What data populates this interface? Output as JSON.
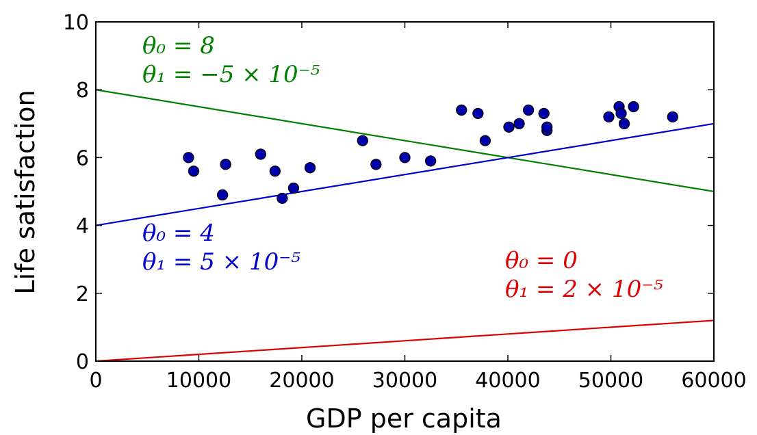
{
  "chart_data": {
    "type": "scatter",
    "xlabel": "GDP per capita",
    "ylabel": "Life satisfaction",
    "xlim": [
      0,
      60000
    ],
    "ylim": [
      0,
      10
    ],
    "xticks": [
      0,
      10000,
      20000,
      30000,
      40000,
      50000,
      60000
    ],
    "yticks": [
      0,
      2,
      4,
      6,
      8,
      10
    ],
    "xtick_labels": [
      "0",
      "10000",
      "20000",
      "30000",
      "40000",
      "50000",
      "60000"
    ],
    "ytick_labels": [
      "0",
      "2",
      "4",
      "6",
      "8",
      "10"
    ],
    "grid": false,
    "points": {
      "color": "#0000aa",
      "x": [
        9000,
        9500,
        12300,
        12600,
        16000,
        17400,
        18100,
        19200,
        20800,
        25900,
        27200,
        30000,
        32500,
        35500,
        37100,
        37800,
        40100,
        41100,
        42000,
        43500,
        43800,
        43800,
        49800,
        50800,
        51000,
        51300,
        52200,
        56000
      ],
      "y": [
        6.0,
        5.6,
        4.9,
        5.8,
        6.1,
        5.6,
        4.8,
        5.1,
        5.7,
        6.5,
        5.8,
        6.0,
        5.9,
        7.4,
        7.3,
        6.5,
        6.9,
        7.0,
        7.4,
        7.3,
        6.8,
        6.9,
        7.2,
        7.5,
        7.3,
        7.0,
        7.5,
        7.2
      ]
    },
    "lines": [
      {
        "theta0": 8,
        "theta1": -5e-05,
        "color": "#008000",
        "label_line1": "θ₀ = 8",
        "label_line2": "θ₁ = −5 × 10⁻⁵"
      },
      {
        "theta0": 4,
        "theta1": 5e-05,
        "color": "#0000cc",
        "label_line1": "θ₀ = 4",
        "label_line2": "θ₁ = 5 × 10⁻⁵"
      },
      {
        "theta0": 0,
        "theta1": 2e-05,
        "color": "#dd0000",
        "label_line1": "θ₀ = 0",
        "label_line2": "θ₁ = 2 × 10⁻⁵"
      }
    ]
  }
}
